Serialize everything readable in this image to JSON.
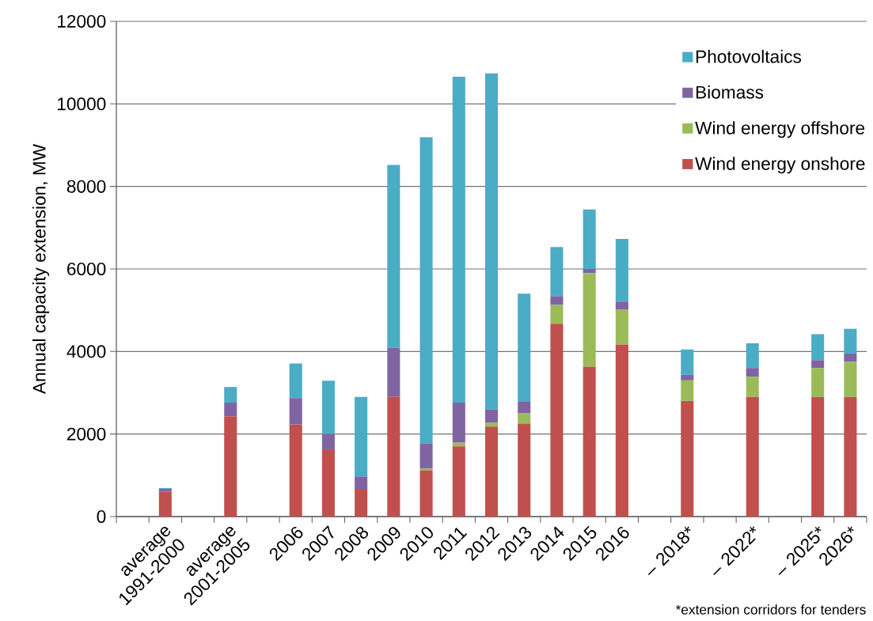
{
  "chart_data": {
    "type": "bar",
    "stacked": true,
    "ylabel": "Annual capacity extension, MW",
    "categories": [
      null,
      "average 1991-2000",
      null,
      "average 2001-2005",
      null,
      "2006",
      "2007",
      "2008",
      "2009",
      "2010",
      "2011",
      "2012",
      "2013",
      "2014",
      "2015",
      "2016",
      null,
      "– 2018*",
      null,
      "– 2022*",
      null,
      "– 2025*",
      "2026*"
    ],
    "series": [
      {
        "name": "Wind energy onshore",
        "color": "#c0504d",
        "values": [
          null,
          600,
          null,
          2430,
          null,
          2230,
          1630,
          670,
          2900,
          1120,
          1700,
          2180,
          2250,
          4670,
          3630,
          4170,
          null,
          2800,
          null,
          2900,
          null,
          2900,
          2900
        ]
      },
      {
        "name": "Wind energy offshore",
        "color": "#9bbb59",
        "values": [
          null,
          0,
          null,
          0,
          null,
          0,
          0,
          0,
          0,
          50,
          90,
          90,
          250,
          460,
          2270,
          840,
          null,
          500,
          null,
          490,
          null,
          700,
          850
        ]
      },
      {
        "name": "Biomass",
        "color": "#8064a2",
        "values": [
          null,
          70,
          null,
          330,
          null,
          640,
          370,
          300,
          1190,
          600,
          970,
          330,
          280,
          210,
          100,
          200,
          null,
          140,
          null,
          210,
          null,
          190,
          200
        ]
      },
      {
        "name": "Photovoltaics",
        "color": "#4bacc6",
        "values": [
          null,
          20,
          null,
          380,
          null,
          840,
          1290,
          1930,
          4430,
          7420,
          7900,
          8140,
          2620,
          1190,
          1440,
          1520,
          null,
          610,
          null,
          600,
          null,
          630,
          600
        ]
      }
    ],
    "ylim": [
      0,
      12000
    ],
    "yticks": [
      0,
      2000,
      4000,
      6000,
      8000,
      10000,
      12000
    ],
    "grid": "y",
    "legend": "top right",
    "annotations": [
      "*extension corridors for tenders"
    ]
  }
}
